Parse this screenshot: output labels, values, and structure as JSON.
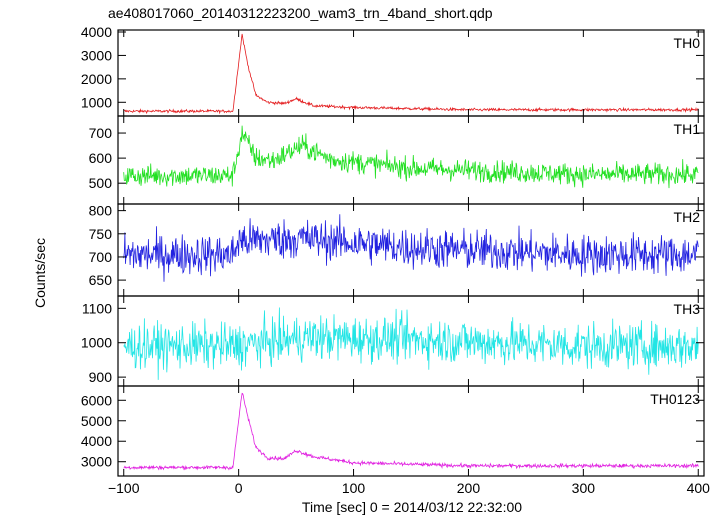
{
  "chart_data": {
    "type": "line",
    "title": "ae408017060_20140312223200_wam3_trn_4band_short.qdp",
    "xlabel": "Time [sec] 0 = 2014/03/12 22:32:00",
    "ylabel": "Counts/sec",
    "xlim": [
      -105,
      405
    ],
    "x_ticks": [
      -100,
      0,
      100,
      200,
      300,
      400
    ],
    "x_tick_labels": [
      "−100",
      "0",
      "100",
      "200",
      "300",
      "400"
    ],
    "grid": false,
    "panels": [
      {
        "name": "TH0",
        "color": "#e31a1c",
        "ylim": [
          500,
          4000
        ],
        "y_ticks": [
          1000,
          2000,
          3000,
          4000
        ],
        "baseline": 620,
        "noise": 30,
        "features": [
          {
            "x": 3,
            "y": 3900
          },
          {
            "x": 8,
            "y": 2600
          },
          {
            "x": 15,
            "y": 1300
          },
          {
            "x": 25,
            "y": 1000
          },
          {
            "x": 40,
            "y": 950
          },
          {
            "x": 50,
            "y": 1150
          },
          {
            "x": 65,
            "y": 850
          },
          {
            "x": 100,
            "y": 780
          },
          {
            "x": 200,
            "y": 680
          }
        ]
      },
      {
        "name": "TH1",
        "color": "#22e022",
        "ylim": [
          425,
          760
        ],
        "y_ticks": [
          500,
          600,
          700
        ],
        "baseline": 530,
        "noise": 22,
        "features": [
          {
            "x": 3,
            "y": 700
          },
          {
            "x": 15,
            "y": 600
          },
          {
            "x": 30,
            "y": 590
          },
          {
            "x": 55,
            "y": 650
          },
          {
            "x": 80,
            "y": 595
          },
          {
            "x": 150,
            "y": 560
          },
          {
            "x": 300,
            "y": 535
          }
        ]
      },
      {
        "name": "TH2",
        "color": "#2222e0",
        "ylim": [
          620,
          810
        ],
        "y_ticks": [
          650,
          700,
          750,
          800
        ],
        "baseline": 705,
        "noise": 22,
        "features": [
          {
            "x": 0,
            "y": 735
          },
          {
            "x": 55,
            "y": 740
          },
          {
            "x": 150,
            "y": 720
          },
          {
            "x": 300,
            "y": 705
          }
        ]
      },
      {
        "name": "TH3",
        "color": "#22e5e5",
        "ylim": [
          880,
          1130
        ],
        "y_ticks": [
          900,
          1000,
          1100
        ],
        "baseline": 990,
        "noise": 33,
        "features": [
          {
            "x": 60,
            "y": 1015
          },
          {
            "x": 150,
            "y": 1010
          },
          {
            "x": 300,
            "y": 990
          }
        ]
      },
      {
        "name": "TH0123",
        "color": "#e01ee0",
        "ylim": [
          2400,
          6600
        ],
        "y_ticks": [
          3000,
          4000,
          5000,
          6000
        ],
        "baseline": 2720,
        "noise": 45,
        "features": [
          {
            "x": 3,
            "y": 6400
          },
          {
            "x": 8,
            "y": 5200
          },
          {
            "x": 15,
            "y": 3700
          },
          {
            "x": 25,
            "y": 3200
          },
          {
            "x": 40,
            "y": 3150
          },
          {
            "x": 50,
            "y": 3550
          },
          {
            "x": 65,
            "y": 3250
          },
          {
            "x": 100,
            "y": 2950
          },
          {
            "x": 200,
            "y": 2800
          }
        ]
      }
    ]
  }
}
